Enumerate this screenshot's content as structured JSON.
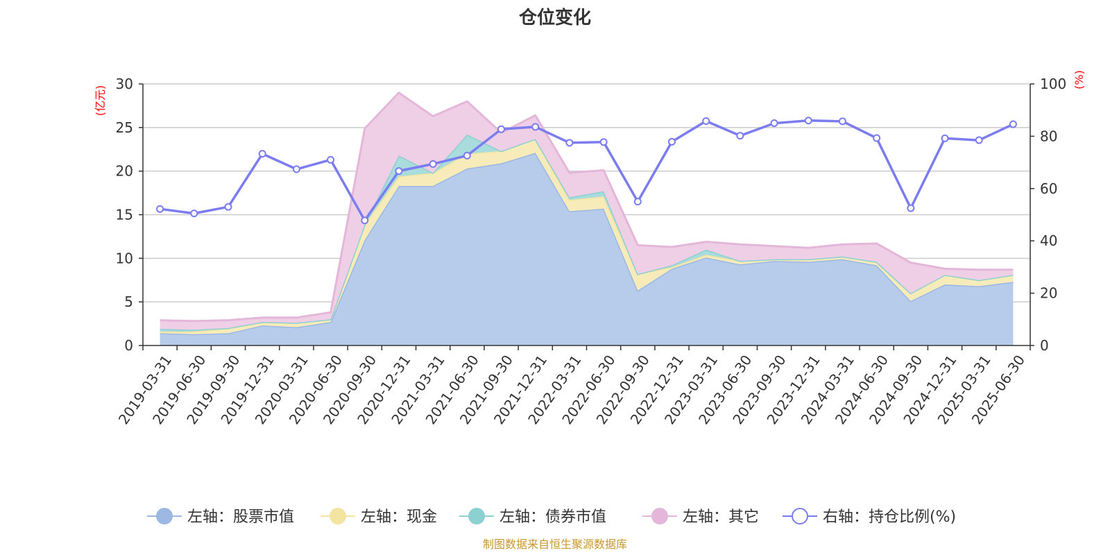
{
  "title": "仓位变化",
  "source": "制图数据来自恒生聚源数据库",
  "chart_data": {
    "type": "area",
    "title": "仓位变化",
    "categories": [
      "2019-03-31",
      "2019-06-30",
      "2019-09-30",
      "2019-12-31",
      "2020-03-31",
      "2020-06-30",
      "2020-09-30",
      "2020-12-31",
      "2021-03-31",
      "2021-06-30",
      "2021-09-30",
      "2021-12-31",
      "2022-03-31",
      "2022-06-30",
      "2022-09-30",
      "2022-12-31",
      "2023-03-31",
      "2023-06-30",
      "2023-09-30",
      "2023-12-31",
      "2024-03-31",
      "2024-06-30",
      "2024-09-30",
      "2024-12-31",
      "2025-03-31",
      "2025-06-30"
    ],
    "left_axis": {
      "unit": "(亿元)",
      "ylim": [
        0,
        30
      ],
      "ticks": [
        "0",
        "5",
        "10",
        "15",
        "20",
        "25",
        "30"
      ]
    },
    "right_axis": {
      "unit": "(%)",
      "ylim": [
        0,
        100
      ],
      "ticks": [
        "0",
        "20",
        "40",
        "60",
        "80",
        "100"
      ]
    },
    "grid": true,
    "legend_position": "bottom",
    "series": [
      {
        "name": "左轴：股票市值",
        "axis": "left",
        "kind": "stacked-area",
        "color": "#9bb8e3",
        "fill": "#b7cceb",
        "values": [
          1.4,
          1.3,
          1.4,
          2.3,
          2.1,
          2.7,
          12.1,
          18.3,
          18.3,
          20.3,
          20.9,
          22.1,
          15.4,
          15.7,
          6.3,
          8.8,
          10.1,
          9.3,
          9.7,
          9.6,
          9.9,
          9.2,
          5.1,
          7.0,
          6.8,
          7.3
        ]
      },
      {
        "name": "左轴：现金",
        "axis": "left",
        "kind": "stacked-area",
        "color": "#f4e4a1",
        "fill": "#f7ebb9",
        "values": [
          0.2,
          0.3,
          0.6,
          0.4,
          0.5,
          0.3,
          1.8,
          1.1,
          1.5,
          1.7,
          1.4,
          1.6,
          1.3,
          1.4,
          1.9,
          0.2,
          0.3,
          0.4,
          0.2,
          0.3,
          0.3,
          0.4,
          0.9,
          1.1,
          0.7,
          0.8
        ]
      },
      {
        "name": "左轴：债券市值",
        "axis": "left",
        "kind": "stacked-area",
        "color": "#8dd0d1",
        "fill": "#a9dcdd",
        "values": [
          0.3,
          0.2,
          0,
          0,
          0,
          0,
          0,
          2.4,
          0,
          2.2,
          0,
          0,
          0.3,
          0.6,
          0,
          0.2,
          0.6,
          0,
          0,
          0,
          0,
          0,
          0,
          0,
          0,
          0
        ]
      },
      {
        "name": "左轴：其它",
        "axis": "left",
        "kind": "stacked-area",
        "color": "#e4b6d9",
        "fill": "#eecfe5",
        "values": [
          1.0,
          1.0,
          0.9,
          0.5,
          0.6,
          0.8,
          11.0,
          7.2,
          6.5,
          3.8,
          2.1,
          2.7,
          2.8,
          2.4,
          3.3,
          2.1,
          0.9,
          1.9,
          1.5,
          1.3,
          1.4,
          2.1,
          3.5,
          0.7,
          1.2,
          0.6
        ]
      },
      {
        "name": "右轴：持仓比例(%)",
        "axis": "right",
        "kind": "line",
        "color": "#7b7cf0",
        "values": [
          52.2,
          50.5,
          53.0,
          73.3,
          67.4,
          71.0,
          47.8,
          66.7,
          69.4,
          72.6,
          82.7,
          83.6,
          77.5,
          77.8,
          55.0,
          77.9,
          85.8,
          80.2,
          85.0,
          86.0,
          85.7,
          79.3,
          52.5,
          79.2,
          78.5,
          84.6
        ]
      }
    ]
  }
}
